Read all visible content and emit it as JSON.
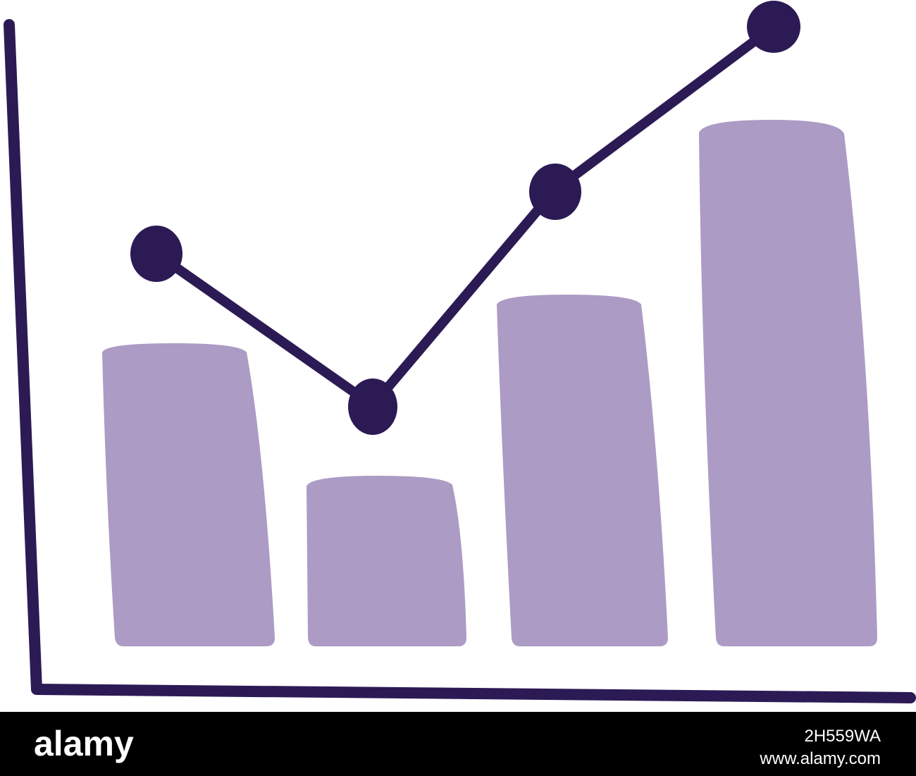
{
  "footer": {
    "logo": "alamy",
    "image_id": "2H559WA",
    "url": "www.alamy.com"
  }
}
